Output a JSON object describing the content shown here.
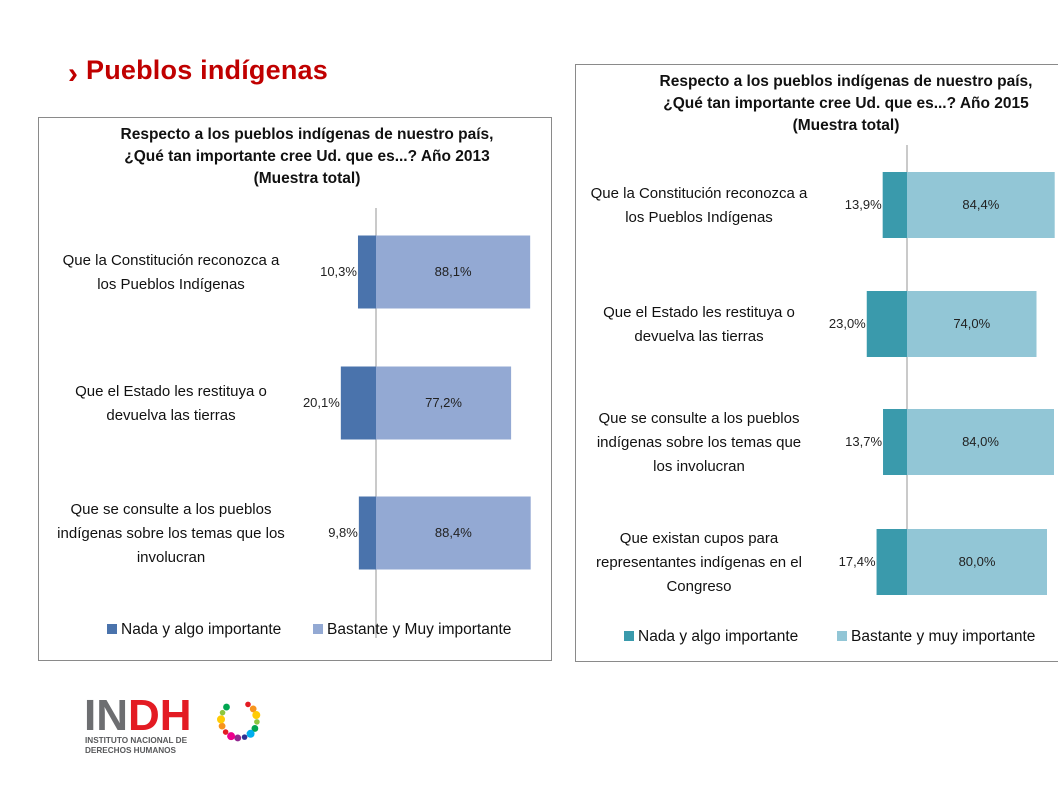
{
  "slide": {
    "title": "Pueblos indígenas",
    "accent_color": "#c00000",
    "chevron_icon": "chevron-right-icon"
  },
  "chart_data": [
    {
      "type": "bar",
      "orientation": "horizontal-diverging",
      "title": "Respecto a los pueblos indígenas de nuestro país,\n¿Qué tan importante cree Ud. que es...? Año 2013\n(Muestra total)",
      "categories": [
        "Que la Constitución reconozca a los Pueblos Indígenas",
        "Que el Estado les restituya o devuelva las tierras",
        "Que se consulte a los pueblos indígenas sobre los temas que los involucran"
      ],
      "category_lines": [
        [
          "Que la Constitución reconozca a",
          "los Pueblos Indígenas"
        ],
        [
          "Que el Estado les restituya o",
          "devuelva las tierras"
        ],
        [
          "Que se consulte a los pueblos",
          "indígenas sobre los temas que los",
          "involucran"
        ]
      ],
      "series": [
        {
          "name": "Nada y algo importante",
          "values": [
            10.3,
            20.1,
            9.8
          ],
          "labels": [
            "10,3%",
            "20,1%",
            "9,8%"
          ],
          "color": "#4a73ac"
        },
        {
          "name": "Bastante y Muy importante",
          "values": [
            88.1,
            77.2,
            88.4
          ],
          "labels": [
            "88,1%",
            "77,2%",
            "88,4%"
          ],
          "color": "#93a9d3"
        }
      ],
      "legend_position": "bottom",
      "grid": false
    },
    {
      "type": "bar",
      "orientation": "horizontal-diverging",
      "title": "Respecto a los pueblos indígenas de nuestro país,\n¿Qué tan importante cree Ud. que es...? Año 2015\n(Muestra total)",
      "categories": [
        "Que la Constitución reconozca a los Pueblos Indígenas",
        "Que el Estado les restituya o devuelva las tierras",
        "Que se consulte a los pueblos indígenas sobre los temas que los involucran",
        "Que existan cupos para representantes indígenas en el Congreso"
      ],
      "category_lines": [
        [
          "Que la Constitución reconozca a",
          "los Pueblos Indígenas"
        ],
        [
          "Que el Estado les restituya o",
          "devuelva las tierras"
        ],
        [
          "Que se consulte a los pueblos",
          "indígenas sobre los temas que",
          "los involucran"
        ],
        [
          "Que existan cupos para",
          "representantes indígenas en el",
          "Congreso"
        ]
      ],
      "series": [
        {
          "name": "Nada y algo importante",
          "values": [
            13.9,
            23.0,
            13.7,
            17.4
          ],
          "labels": [
            "13,9%",
            "23,0%",
            "13,7%",
            "17,4%"
          ],
          "color": "#3a9aac"
        },
        {
          "name": "Bastante y muy importante",
          "values": [
            84.4,
            74.0,
            84.0,
            80.0
          ],
          "labels": [
            "84,4%",
            "74,0%",
            "84,0%",
            "80,0%"
          ],
          "color": "#92c6d6"
        }
      ],
      "legend_position": "bottom",
      "grid": false
    }
  ],
  "logo": {
    "letters": "INDH",
    "line1": "INSTITUTO NACIONAL DE",
    "line2": "DERECHOS HUMANOS",
    "dark_color": "#6d6e71",
    "accent_color": "#e31b23"
  }
}
